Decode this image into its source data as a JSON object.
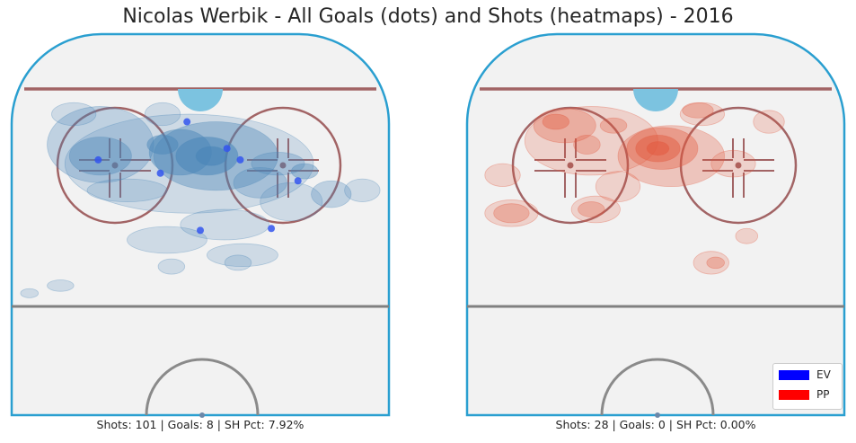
{
  "title": "Nicolas Werbik - All Goals (dots) and Shots (heatmaps) - 2016",
  "chart_data": [
    {
      "type": "scatter",
      "panel": "EV",
      "caption": "Shots: 101 | Goals: 8 | SH Pct: 7.92%",
      "stats": {
        "shots": 101,
        "goals": 8,
        "sh_pct": 7.92
      },
      "xlim": [
        0,
        85
      ],
      "ylim": [
        0,
        100
      ],
      "grid": false,
      "goals": [
        {
          "x": 39.5,
          "y": 77
        },
        {
          "x": 19.5,
          "y": 67
        },
        {
          "x": 33.5,
          "y": 63.5
        },
        {
          "x": 48.5,
          "y": 70
        },
        {
          "x": 51.5,
          "y": 67
        },
        {
          "x": 64.5,
          "y": 61.5
        },
        {
          "x": 58.5,
          "y": 49
        },
        {
          "x": 42.5,
          "y": 48.5
        }
      ],
      "heat_color": "#4a86b8",
      "heatmap": [
        {
          "x": 45,
          "y": 68,
          "rx": 3.5,
          "ry": 2.5,
          "level": 6
        },
        {
          "x": 44,
          "y": 68,
          "rx": 7,
          "ry": 5,
          "level": 5
        },
        {
          "x": 38,
          "y": 69,
          "rx": 7,
          "ry": 6,
          "level": 4
        },
        {
          "x": 34,
          "y": 71,
          "rx": 3.5,
          "ry": 2.5,
          "level": 4
        },
        {
          "x": 46,
          "y": 68,
          "rx": 14,
          "ry": 9,
          "level": 3
        },
        {
          "x": 20,
          "y": 68,
          "rx": 7,
          "ry": 5,
          "level": 3
        },
        {
          "x": 66,
          "y": 64,
          "rx": 3,
          "ry": 2,
          "level": 3
        },
        {
          "x": 60,
          "y": 66,
          "rx": 6,
          "ry": 3,
          "level": 2
        },
        {
          "x": 40,
          "y": 66,
          "rx": 28,
          "ry": 13,
          "level": 1
        },
        {
          "x": 20,
          "y": 71,
          "rx": 12,
          "ry": 10,
          "level": 2
        },
        {
          "x": 14,
          "y": 79,
          "rx": 5,
          "ry": 3,
          "level": 1
        },
        {
          "x": 34,
          "y": 79,
          "rx": 4,
          "ry": 3,
          "level": 1
        },
        {
          "x": 72,
          "y": 58,
          "rx": 4.5,
          "ry": 3.5,
          "level": 2
        },
        {
          "x": 63,
          "y": 56,
          "rx": 7,
          "ry": 5,
          "level": 1
        },
        {
          "x": 26,
          "y": 59,
          "rx": 9,
          "ry": 3,
          "level": 1
        },
        {
          "x": 48,
          "y": 50,
          "rx": 10,
          "ry": 4,
          "level": 1
        },
        {
          "x": 35,
          "y": 46,
          "rx": 9,
          "ry": 3.5,
          "level": 1
        },
        {
          "x": 52,
          "y": 42,
          "rx": 8,
          "ry": 3,
          "level": 1
        },
        {
          "x": 56,
          "y": 61,
          "rx": 6,
          "ry": 4,
          "level": 2
        },
        {
          "x": 36,
          "y": 39,
          "rx": 3,
          "ry": 2,
          "level": 1
        },
        {
          "x": 51,
          "y": 40,
          "rx": 3,
          "ry": 2,
          "level": 1
        },
        {
          "x": 11,
          "y": 34,
          "rx": 3,
          "ry": 1.5,
          "level": 1
        },
        {
          "x": 4,
          "y": 32,
          "rx": 2,
          "ry": 1.2,
          "level": 1
        },
        {
          "x": 79,
          "y": 59,
          "rx": 4,
          "ry": 3,
          "level": 1
        }
      ]
    },
    {
      "type": "scatter",
      "panel": "PP",
      "caption": "Shots: 28 | Goals: 0 | SH Pct: 0.00%",
      "stats": {
        "shots": 28,
        "goals": 0,
        "sh_pct": 0.0
      },
      "xlim": [
        0,
        85
      ],
      "ylim": [
        0,
        100
      ],
      "grid": false,
      "goals": [],
      "heat_color": "#e2593f",
      "heatmap": [
        {
          "x": 43,
          "y": 70,
          "rx": 2.5,
          "ry": 1.8,
          "level": 5
        },
        {
          "x": 43,
          "y": 70,
          "rx": 5,
          "ry": 3.5,
          "level": 4
        },
        {
          "x": 44,
          "y": 70,
          "rx": 8,
          "ry": 5.5,
          "level": 3
        },
        {
          "x": 20,
          "y": 77,
          "rx": 3,
          "ry": 2,
          "level": 3
        },
        {
          "x": 22,
          "y": 76,
          "rx": 7,
          "ry": 4.5,
          "level": 2
        },
        {
          "x": 33,
          "y": 76,
          "rx": 3,
          "ry": 2,
          "level": 2
        },
        {
          "x": 52,
          "y": 80,
          "rx": 3.5,
          "ry": 2,
          "level": 2
        },
        {
          "x": 28,
          "y": 72,
          "rx": 15,
          "ry": 9,
          "level": 1
        },
        {
          "x": 46,
          "y": 68,
          "rx": 12,
          "ry": 8,
          "level": 2
        },
        {
          "x": 53,
          "y": 79,
          "rx": 5,
          "ry": 3,
          "level": 1
        },
        {
          "x": 68,
          "y": 77,
          "rx": 3.5,
          "ry": 3,
          "level": 1
        },
        {
          "x": 8,
          "y": 63,
          "rx": 4,
          "ry": 3,
          "level": 1
        },
        {
          "x": 10,
          "y": 53,
          "rx": 4,
          "ry": 2.5,
          "level": 2
        },
        {
          "x": 10,
          "y": 53,
          "rx": 6,
          "ry": 3.5,
          "level": 1
        },
        {
          "x": 28,
          "y": 54,
          "rx": 3,
          "ry": 2,
          "level": 2
        },
        {
          "x": 29,
          "y": 54,
          "rx": 5.5,
          "ry": 3.5,
          "level": 1
        },
        {
          "x": 34,
          "y": 60,
          "rx": 5,
          "ry": 4,
          "level": 1
        },
        {
          "x": 60,
          "y": 66,
          "rx": 5,
          "ry": 3.5,
          "level": 1
        },
        {
          "x": 55,
          "y": 40,
          "rx": 4,
          "ry": 3,
          "level": 1
        },
        {
          "x": 56,
          "y": 40,
          "rx": 2,
          "ry": 1.5,
          "level": 2
        },
        {
          "x": 63,
          "y": 47,
          "rx": 2.5,
          "ry": 2,
          "level": 1
        },
        {
          "x": 27,
          "y": 71,
          "rx": 3,
          "ry": 2.5,
          "level": 2
        }
      ]
    }
  ],
  "legend": {
    "entries": [
      {
        "label": "EV",
        "color": "#0000ff"
      },
      {
        "label": "PP",
        "color": "#ff0000"
      }
    ],
    "placement": "lower-right"
  },
  "rink": {
    "ice": "#f2f2f2",
    "boards": "#2a9fd0",
    "goal_line": "#a26465",
    "crease": "#7cc3e0",
    "faceoff": "#a26465",
    "blue_line": "#808080",
    "center_circle": "#8a8a8a"
  }
}
